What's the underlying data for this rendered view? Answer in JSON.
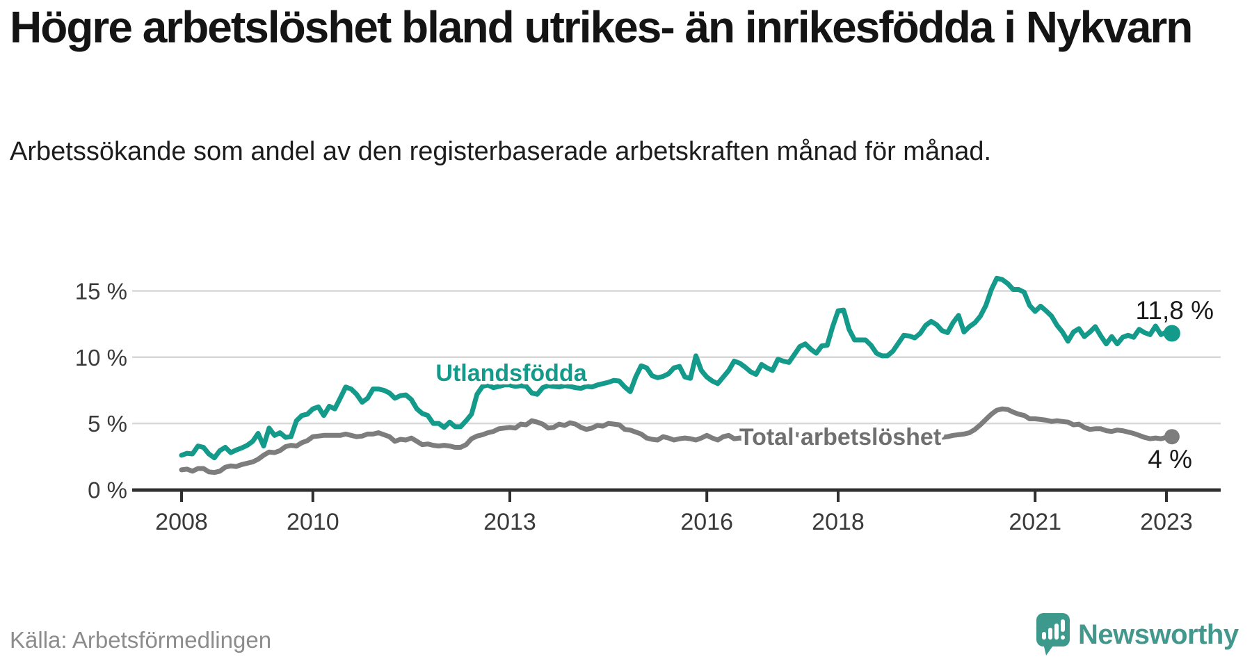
{
  "chart_data": {
    "type": "line",
    "title": "Högre arbetslöshet bland utrikes- än inrikesfödda i Nykvarn",
    "subtitle": "Arbetssökande som andel av den registerbaserade arbetskraften månad för månad.",
    "source": "Källa: Arbetsförmedlingen",
    "grid": true,
    "legend_position": "inline-labels",
    "x_axis": {
      "ticks": [
        2008,
        2010,
        2013,
        2016,
        2018,
        2021,
        2023
      ],
      "tick_labels": [
        "2008",
        "2010",
        "2013",
        "2016",
        "2018",
        "2021",
        "2023"
      ],
      "range": [
        2007.25,
        2023.8
      ]
    },
    "y_axis": {
      "ticks": [
        0,
        5,
        10,
        15
      ],
      "tick_labels": [
        "0 %",
        "5 %",
        "10 %",
        "15 %"
      ],
      "range": [
        0,
        16.6
      ]
    },
    "series": [
      {
        "name": "Utlandsfödda",
        "color": "#149a8b",
        "start_year": 2008,
        "interval_months": 1,
        "end_value": 11.8,
        "end_label": "11,8 %",
        "values": [
          2.6,
          2.75,
          2.7,
          3.3,
          3.2,
          2.7,
          2.4,
          2.95,
          3.2,
          2.8,
          3.0,
          3.15,
          3.35,
          3.65,
          4.25,
          3.3,
          4.65,
          4.1,
          4.3,
          3.95,
          4.0,
          5.2,
          5.6,
          5.7,
          6.1,
          6.25,
          5.6,
          6.3,
          6.1,
          6.9,
          7.75,
          7.6,
          7.2,
          6.6,
          6.9,
          7.6,
          7.6,
          7.5,
          7.3,
          6.9,
          7.1,
          7.15,
          6.8,
          6.1,
          5.75,
          5.6,
          5.0,
          5.0,
          4.7,
          5.1,
          4.75,
          4.75,
          5.2,
          5.7,
          7.2,
          7.8,
          7.9,
          7.7,
          7.8,
          7.9,
          7.9,
          7.8,
          7.85,
          7.8,
          7.3,
          7.2,
          7.7,
          7.85,
          7.8,
          7.75,
          7.85,
          7.8,
          7.7,
          7.65,
          7.8,
          7.75,
          7.9,
          8.0,
          8.1,
          8.25,
          8.2,
          7.75,
          7.4,
          8.5,
          9.35,
          9.2,
          8.6,
          8.45,
          8.55,
          8.75,
          9.2,
          9.3,
          8.5,
          8.4,
          10.1,
          9.0,
          8.5,
          8.2,
          8.0,
          8.5,
          9.0,
          9.7,
          9.55,
          9.25,
          8.9,
          8.7,
          9.45,
          9.2,
          9.0,
          9.85,
          9.7,
          9.6,
          10.2,
          10.8,
          11.0,
          10.6,
          10.3,
          10.85,
          10.9,
          12.3,
          13.5,
          13.55,
          12.1,
          11.3,
          11.3,
          11.3,
          10.9,
          10.3,
          10.1,
          10.1,
          10.45,
          11.05,
          11.65,
          11.6,
          11.45,
          11.8,
          12.4,
          12.7,
          12.45,
          12.0,
          11.85,
          12.6,
          13.15,
          11.9,
          12.3,
          12.6,
          13.1,
          13.9,
          15.1,
          15.95,
          15.85,
          15.55,
          15.1,
          15.1,
          14.9,
          13.9,
          13.45,
          13.85,
          13.5,
          13.1,
          12.4,
          11.9,
          11.2,
          11.9,
          12.15,
          11.55,
          11.9,
          12.3,
          11.6,
          11.0,
          11.55,
          11.0,
          11.5,
          11.65,
          11.5,
          12.1,
          11.85,
          11.7,
          12.35,
          11.7,
          11.9,
          11.8
        ]
      },
      {
        "name": "Total arbetslöshet",
        "color": "#7d7d7d",
        "start_year": 2008,
        "interval_months": 1,
        "end_value": 4.0,
        "end_label": "4 %",
        "values": [
          1.5,
          1.55,
          1.4,
          1.6,
          1.6,
          1.35,
          1.3,
          1.4,
          1.7,
          1.8,
          1.75,
          1.9,
          2.0,
          2.1,
          2.3,
          2.6,
          2.85,
          2.8,
          2.95,
          3.25,
          3.35,
          3.3,
          3.55,
          3.7,
          4.0,
          4.05,
          4.1,
          4.1,
          4.1,
          4.1,
          4.2,
          4.1,
          4.0,
          4.05,
          4.2,
          4.2,
          4.3,
          4.15,
          4.0,
          3.65,
          3.8,
          3.75,
          3.9,
          3.65,
          3.4,
          3.45,
          3.35,
          3.3,
          3.35,
          3.3,
          3.2,
          3.2,
          3.4,
          3.85,
          4.05,
          4.15,
          4.3,
          4.4,
          4.6,
          4.65,
          4.7,
          4.65,
          4.95,
          4.9,
          5.2,
          5.1,
          4.95,
          4.65,
          4.7,
          4.95,
          4.85,
          5.05,
          4.95,
          4.7,
          4.55,
          4.65,
          4.85,
          4.8,
          5.0,
          4.95,
          4.9,
          4.55,
          4.5,
          4.35,
          4.2,
          3.9,
          3.8,
          3.75,
          4.0,
          3.9,
          3.75,
          3.85,
          3.9,
          3.85,
          3.75,
          3.9,
          4.1,
          3.9,
          3.75,
          4.0,
          4.1,
          3.85,
          3.9,
          3.85,
          3.75,
          3.9,
          4.0,
          3.9,
          3.95,
          4.05,
          4.25,
          4.35,
          4.2,
          4.1,
          4.15,
          4.1,
          3.9,
          3.95,
          3.9,
          3.9,
          4.0,
          3.95,
          3.9,
          3.85,
          3.8,
          3.85,
          3.9,
          3.85,
          3.8,
          3.85,
          3.9,
          3.95,
          4.0,
          3.95,
          3.9,
          3.95,
          4.0,
          4.05,
          4.0,
          3.95,
          4.0,
          4.1,
          4.15,
          4.2,
          4.3,
          4.55,
          4.9,
          5.3,
          5.7,
          6.0,
          6.1,
          6.05,
          5.85,
          5.7,
          5.6,
          5.35,
          5.35,
          5.3,
          5.25,
          5.15,
          5.2,
          5.15,
          5.1,
          4.9,
          4.95,
          4.7,
          4.55,
          4.6,
          4.6,
          4.45,
          4.4,
          4.5,
          4.45,
          4.35,
          4.25,
          4.1,
          3.95,
          3.85,
          3.9,
          3.85,
          3.95,
          4.0
        ]
      }
    ]
  },
  "footer": {
    "brand": "Newsworthy"
  },
  "colors": {
    "accent_teal": "#149a8b",
    "line_gray": "#7d7d7d",
    "grid": "#d8d8d8",
    "axis": "#2f2f2f",
    "brand_teal": "#43988d"
  }
}
